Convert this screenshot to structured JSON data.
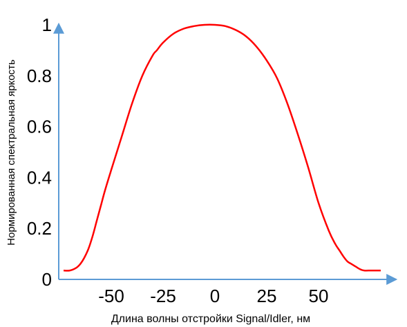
{
  "chart_data": {
    "type": "line",
    "title": "",
    "xlabel": "Длина волны отстройки Signal/Idler, нм",
    "ylabel": "Нормированная спектральная яркость",
    "xlim": [
      -75,
      86
    ],
    "ylim": [
      0,
      1
    ],
    "x_ticks": [
      "-50",
      "-25",
      "0",
      "25",
      "50"
    ],
    "x_tick_values": [
      -50,
      -25,
      0,
      25,
      50
    ],
    "y_ticks": [
      "0",
      "0.2",
      "0.4",
      "0.6",
      "0.8",
      "1"
    ],
    "y_tick_values": [
      0,
      0.2,
      0.4,
      0.6,
      0.8,
      1
    ],
    "grid": false,
    "axis_color": "#5b9bd5",
    "series": [
      {
        "color": "#ff0000",
        "x": [
          -73,
          -70,
          -67,
          -65,
          -63,
          -61,
          -59,
          -57,
          -55,
          -53,
          -50,
          -45,
          -40,
          -35,
          -30,
          -28,
          -25,
          -20,
          -15,
          -10,
          -5,
          0,
          5,
          10,
          15,
          20,
          25,
          30,
          35,
          40,
          45,
          50,
          55,
          58,
          60,
          62,
          64,
          66,
          68,
          70,
          72,
          75,
          77,
          80
        ],
        "y": [
          0.035,
          0.035,
          0.045,
          0.06,
          0.085,
          0.12,
          0.17,
          0.23,
          0.29,
          0.35,
          0.43,
          0.56,
          0.69,
          0.8,
          0.88,
          0.9,
          0.93,
          0.965,
          0.985,
          0.995,
          1.0,
          1.0,
          0.995,
          0.98,
          0.955,
          0.915,
          0.86,
          0.79,
          0.69,
          0.57,
          0.44,
          0.3,
          0.19,
          0.14,
          0.115,
          0.09,
          0.07,
          0.06,
          0.05,
          0.04,
          0.035,
          0.035,
          0.035,
          0.035
        ]
      }
    ]
  }
}
